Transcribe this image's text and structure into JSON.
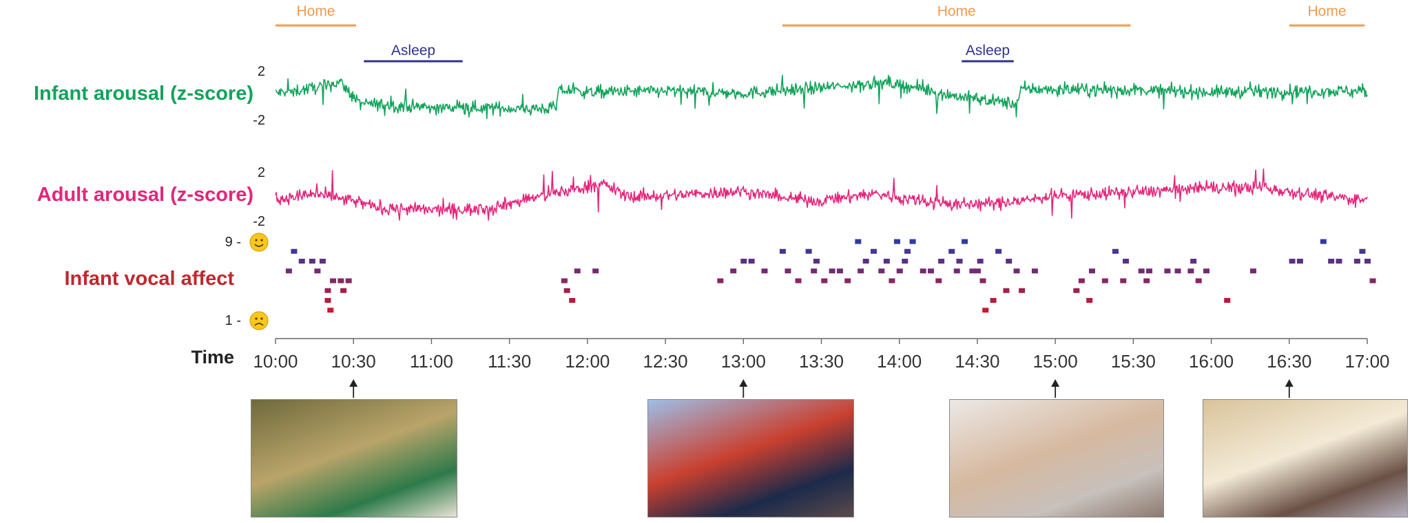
{
  "chart_data": {
    "type": "line",
    "time_axis": {
      "label": "Time",
      "ticks": [
        "10:00",
        "10:30",
        "11:00",
        "11:30",
        "12:00",
        "12:30",
        "13:00",
        "13:30",
        "14:00",
        "14:30",
        "15:00",
        "15:30",
        "16:00",
        "16:30",
        "17:00"
      ],
      "range_minutes": [
        600,
        1020
      ]
    },
    "context_bars": [
      {
        "label": "Home",
        "start": "10:00",
        "end": "10:31",
        "color": "#f39a4d",
        "row": "top"
      },
      {
        "label": "Home",
        "start": "13:15",
        "end": "15:29",
        "color": "#f39a4d",
        "row": "top"
      },
      {
        "label": "Home",
        "start": "16:30",
        "end": "16:59",
        "color": "#f39a4d",
        "row": "top"
      },
      {
        "label": "Asleep",
        "start": "10:34",
        "end": "11:12",
        "color": "#2e3192",
        "row": "bottom"
      },
      {
        "label": "Asleep",
        "start": "14:24",
        "end": "14:44",
        "color": "#2e3192",
        "row": "bottom"
      }
    ],
    "series": [
      {
        "name": "Infant arousal (z-score)",
        "color": "#10a35a",
        "ylim": [
          -2,
          2
        ],
        "ytick_labels": [
          "2",
          "-2"
        ],
        "x": [
          "10:00",
          "10:10",
          "10:20",
          "10:25",
          "10:32",
          "10:45",
          "11:00",
          "11:20",
          "11:40",
          "11:48",
          "11:49",
          "12:00",
          "12:30",
          "13:00",
          "13:30",
          "13:50",
          "14:00",
          "14:20",
          "14:40",
          "14:45",
          "14:47",
          "15:00",
          "15:30",
          "16:00",
          "16:30",
          "17:00"
        ],
        "y": [
          0.0,
          0.3,
          0.7,
          1.0,
          -0.9,
          -1.1,
          -1.3,
          -1.3,
          -1.4,
          -1.3,
          0.3,
          0.1,
          0.2,
          0.0,
          0.5,
          0.9,
          0.8,
          -0.2,
          -0.8,
          -1.0,
          0.4,
          0.3,
          0.3,
          0.1,
          0.2,
          0.2
        ]
      },
      {
        "name": "Adult arousal (z-score)",
        "color": "#e5257a",
        "ylim": [
          -2,
          2
        ],
        "ytick_labels": [
          "2",
          "-2"
        ],
        "x": [
          "10:00",
          "10:15",
          "10:30",
          "10:40",
          "11:00",
          "11:20",
          "11:30",
          "11:45",
          "12:00",
          "12:07",
          "12:15",
          "12:30",
          "13:00",
          "13:15",
          "13:30",
          "13:50",
          "14:00",
          "14:20",
          "14:40",
          "15:00",
          "15:30",
          "16:00",
          "16:20",
          "16:45",
          "17:00"
        ],
        "y": [
          -0.4,
          0.0,
          -0.6,
          -1.2,
          -1.4,
          -1.3,
          -0.8,
          0.0,
          0.7,
          0.9,
          -0.2,
          -0.1,
          0.3,
          -0.3,
          -0.6,
          0.1,
          -0.3,
          -0.9,
          -0.8,
          -0.1,
          0.2,
          0.6,
          0.6,
          -0.2,
          -0.5
        ]
      }
    ],
    "vocal_affect": {
      "name": "Infant vocal affect",
      "color": "#c1272d",
      "ylim": [
        1,
        9
      ],
      "ytick_labels": [
        "9 -",
        "1 -"
      ],
      "low_color": "#e3111b",
      "high_color": "#2e3aa8",
      "points": [
        [
          605,
          6
        ],
        [
          607,
          8
        ],
        [
          610,
          7
        ],
        [
          614,
          7
        ],
        [
          616,
          6
        ],
        [
          618,
          7
        ],
        [
          620,
          4
        ],
        [
          620,
          3
        ],
        [
          621,
          2
        ],
        [
          622,
          5
        ],
        [
          625,
          5
        ],
        [
          626,
          4
        ],
        [
          628,
          5
        ],
        [
          711,
          5
        ],
        [
          712,
          4
        ],
        [
          714,
          3
        ],
        [
          716,
          6
        ],
        [
          723,
          6
        ],
        [
          771,
          5
        ],
        [
          776,
          6
        ],
        [
          780,
          7
        ],
        [
          783,
          7
        ],
        [
          788,
          6
        ],
        [
          795,
          8
        ],
        [
          797,
          6
        ],
        [
          801,
          5
        ],
        [
          805,
          8
        ],
        [
          807,
          6
        ],
        [
          808,
          7
        ],
        [
          811,
          5
        ],
        [
          814,
          6
        ],
        [
          817,
          6
        ],
        [
          820,
          5
        ],
        [
          824,
          9
        ],
        [
          825,
          6
        ],
        [
          827,
          7
        ],
        [
          830,
          8
        ],
        [
          833,
          6
        ],
        [
          835,
          7
        ],
        [
          837,
          5
        ],
        [
          839,
          9
        ],
        [
          840,
          6
        ],
        [
          842,
          7
        ],
        [
          843,
          8
        ],
        [
          845,
          9
        ],
        [
          849,
          6
        ],
        [
          852,
          6
        ],
        [
          855,
          5
        ],
        [
          856,
          7
        ],
        [
          860,
          8
        ],
        [
          862,
          6
        ],
        [
          863,
          7
        ],
        [
          865,
          9
        ],
        [
          868,
          6
        ],
        [
          870,
          6
        ],
        [
          871,
          7
        ],
        [
          872,
          5
        ],
        [
          873,
          2
        ],
        [
          876,
          3
        ],
        [
          878,
          8
        ],
        [
          881,
          4
        ],
        [
          882,
          7
        ],
        [
          885,
          6
        ],
        [
          887,
          4
        ],
        [
          892,
          6
        ],
        [
          908,
          4
        ],
        [
          910,
          5
        ],
        [
          913,
          3
        ],
        [
          914,
          6
        ],
        [
          919,
          5
        ],
        [
          923,
          8
        ],
        [
          926,
          5
        ],
        [
          927,
          7
        ],
        [
          933,
          6
        ],
        [
          935,
          5
        ],
        [
          936,
          6
        ],
        [
          943,
          6
        ],
        [
          947,
          6
        ],
        [
          952,
          6
        ],
        [
          953,
          7
        ],
        [
          955,
          5
        ],
        [
          958,
          6
        ],
        [
          966,
          3
        ],
        [
          976,
          6
        ],
        [
          991,
          7
        ],
        [
          994,
          7
        ],
        [
          1003,
          9
        ],
        [
          1006,
          7
        ],
        [
          1009,
          7
        ],
        [
          1016,
          7
        ],
        [
          1018,
          8
        ],
        [
          1020,
          7
        ],
        [
          1022,
          5
        ]
      ]
    }
  },
  "photos": [
    {
      "caption": "10:30",
      "palette": [
        "#6f6a3c",
        "#b9a46a",
        "#2d7a4a",
        "#e9e3d4"
      ]
    },
    {
      "caption": "13:00",
      "palette": [
        "#9dbfe7",
        "#c9402f",
        "#1c2a4a",
        "#5b4a49"
      ]
    },
    {
      "caption": "15:00",
      "palette": [
        "#ece8e6",
        "#d6b9a0",
        "#c7c0bb",
        "#8c7a70"
      ]
    },
    {
      "caption": "16:30",
      "palette": [
        "#d9c39b",
        "#f3ead6",
        "#6a5146",
        "#b6b3c2"
      ]
    }
  ]
}
